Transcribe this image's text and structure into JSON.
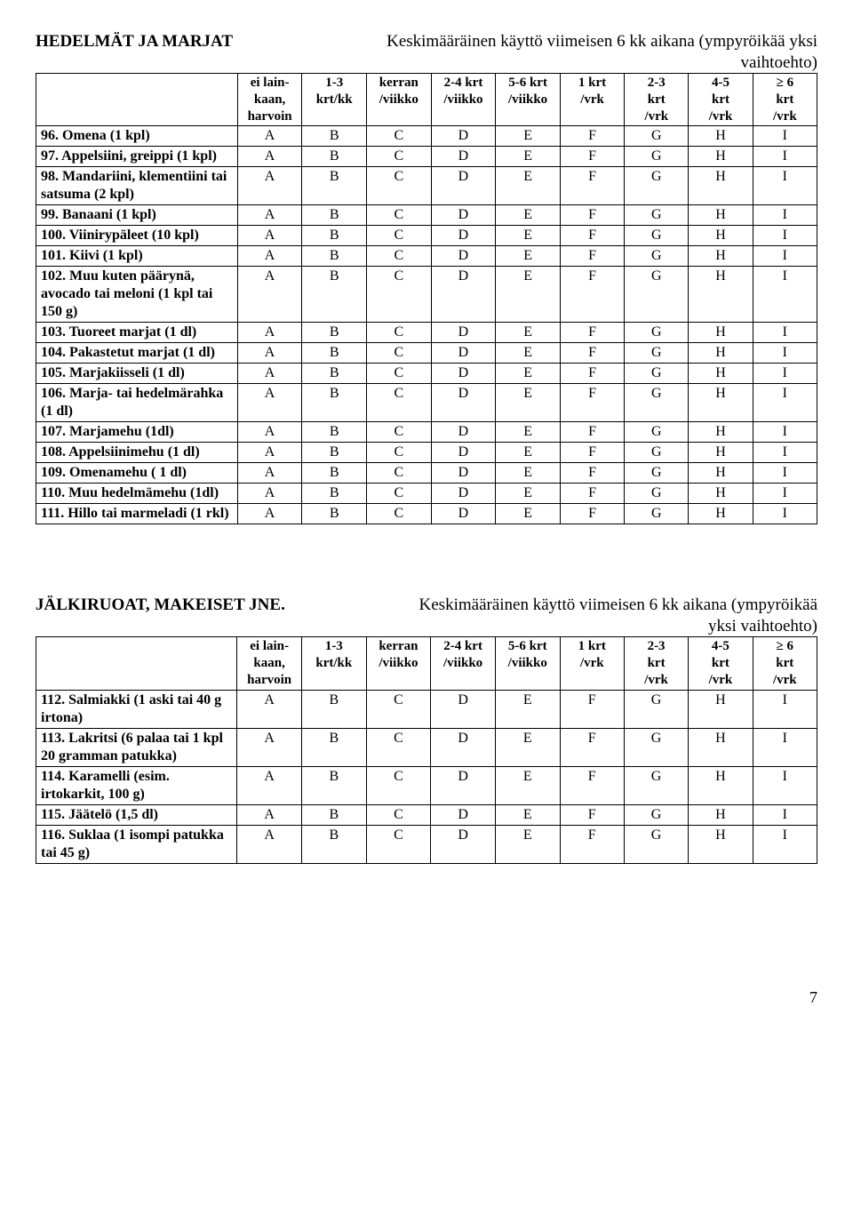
{
  "section1": {
    "title": "HEDELMÄT JA MARJAT",
    "subtitle_line1": "Keskimääräinen käyttö viimeisen 6 kk aikana (ympyröikää yksi",
    "subtitle_line2": "vaihtoehto)",
    "columns": [
      [
        "ei lain-",
        "kaan,",
        "harvoin"
      ],
      [
        "1-3",
        "krt/kk",
        ""
      ],
      [
        "kerran",
        "/viikko",
        ""
      ],
      [
        "2-4 krt",
        "/viikko",
        ""
      ],
      [
        "5-6 krt",
        "/viikko",
        ""
      ],
      [
        "1 krt",
        "/vrk",
        ""
      ],
      [
        "2-3",
        "krt",
        "/vrk"
      ],
      [
        "4-5",
        "krt",
        "/vrk"
      ],
      [
        "≥ 6",
        "krt",
        "/vrk"
      ]
    ],
    "options": [
      "A",
      "B",
      "C",
      "D",
      "E",
      "F",
      "G",
      "H",
      "I"
    ],
    "rows": [
      "96. Omena (1 kpl)",
      "97. Appelsiini, greippi (1 kpl)",
      "98. Mandariini, klementiini tai satsuma (2 kpl)",
      "99. Banaani (1 kpl)",
      "100. Viinirypäleet (10 kpl)",
      "101. Kiivi (1 kpl)",
      "102. Muu kuten päärynä, avocado tai meloni (1 kpl tai 150 g)",
      "103. Tuoreet marjat (1 dl)",
      "104. Pakastetut marjat (1 dl)",
      "105. Marjakiisseli (1 dl)",
      "106. Marja- tai hedelmärahka (1 dl)",
      "107. Marjamehu (1dl)",
      "108. Appelsiinimehu (1 dl)",
      "109. Omenamehu ( 1 dl)",
      "110. Muu hedelmämehu (1dl)",
      "111. Hillo tai marmeladi (1 rkl)"
    ]
  },
  "section2": {
    "title": "JÄLKIRUOAT, MAKEISET JNE.",
    "subtitle_line1": "Keskimääräinen käyttö viimeisen 6 kk aikana (ympyröikää",
    "subtitle_line2": "yksi vaihtoehto)",
    "columns": [
      [
        "ei lain-",
        "kaan,",
        "harvoin"
      ],
      [
        "1-3",
        "krt/kk",
        ""
      ],
      [
        "kerran",
        "/viikko",
        ""
      ],
      [
        "2-4 krt",
        "/viikko",
        ""
      ],
      [
        "5-6 krt",
        "/viikko",
        ""
      ],
      [
        "1 krt",
        "/vrk",
        ""
      ],
      [
        "2-3",
        "krt",
        "/vrk"
      ],
      [
        "4-5",
        "krt",
        "/vrk"
      ],
      [
        "≥ 6",
        "krt",
        "/vrk"
      ]
    ],
    "options": [
      "A",
      "B",
      "C",
      "D",
      "E",
      "F",
      "G",
      "H",
      "I"
    ],
    "rows": [
      "112. Salmiakki (1 aski tai 40 g irtona)",
      "113. Lakritsi (6 palaa tai 1 kpl 20 gramman patukka)",
      "114. Karamelli (esim. irtokarkit, 100 g)",
      "115. Jäätelö (1,5 dl)",
      "116. Suklaa (1 isompi patukka tai 45 g)"
    ]
  },
  "page_number": "7"
}
